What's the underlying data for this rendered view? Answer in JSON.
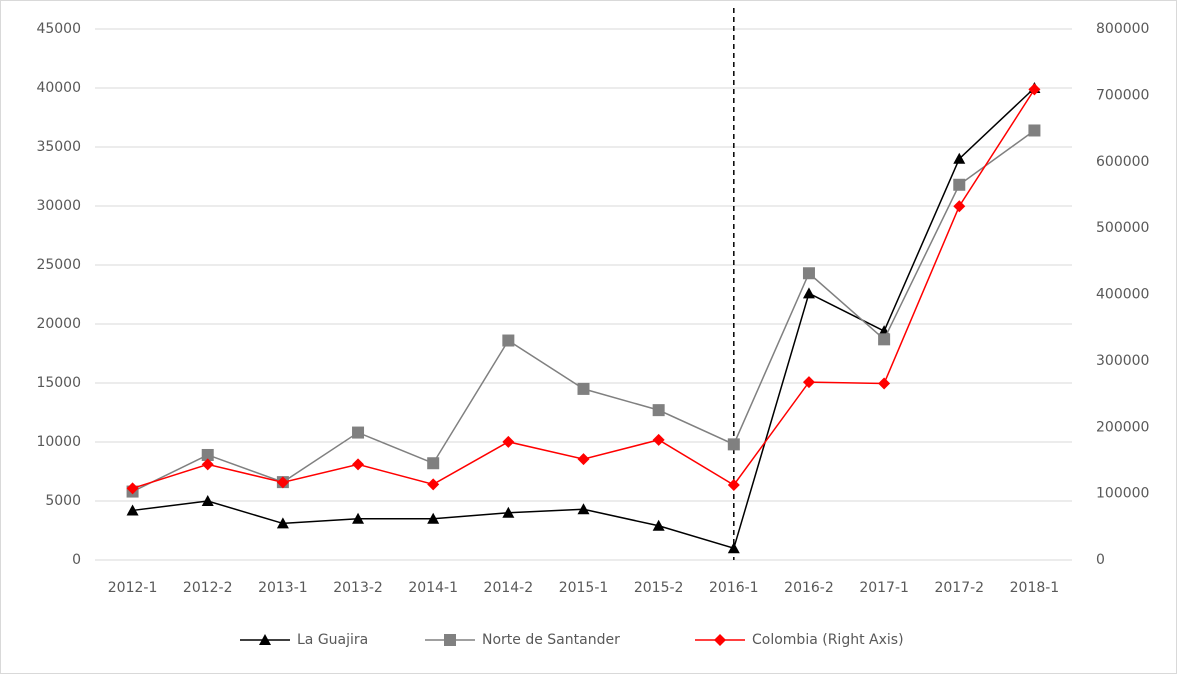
{
  "chart_data": {
    "type": "line",
    "categories": [
      "2012-1",
      "2012-2",
      "2013-1",
      "2013-2",
      "2014-1",
      "2014-2",
      "2015-1",
      "2015-2",
      "2016-1",
      "2016-2",
      "2017-1",
      "2017-2",
      "2018-1"
    ],
    "series": [
      {
        "name": "La Guajira",
        "color": "#000000",
        "marker": "triangle",
        "values": [
          4200,
          5000,
          3100,
          3500,
          3500,
          4000,
          4300,
          2900,
          1000,
          22600,
          19400,
          34000,
          40000
        ]
      },
      {
        "name": "Norte de Santander",
        "color": "#808080",
        "marker": "square",
        "values": [
          5800,
          8900,
          6600,
          10800,
          8200,
          18600,
          14500,
          12700,
          9800,
          24300,
          18700,
          31800,
          36400
        ]
      },
      {
        "name": "Colombia (Right Axis)",
        "color": "#ff0000",
        "marker": "diamond",
        "axis": "y2",
        "values": [
          108000,
          144000,
          117000,
          144000,
          114000,
          178000,
          152000,
          181000,
          113000,
          268000,
          266000,
          533000,
          709000
        ]
      }
    ],
    "ylim": [
      0,
      45000
    ],
    "yticks": [
      0,
      5000,
      10000,
      15000,
      20000,
      25000,
      30000,
      35000,
      40000,
      45000
    ],
    "y2lim": [
      0,
      800000
    ],
    "y2ticks": [
      0,
      100000,
      200000,
      300000,
      400000,
      500000,
      600000,
      700000,
      800000
    ],
    "grid": true,
    "legend": "bottom",
    "marker_line": "2016-1"
  }
}
